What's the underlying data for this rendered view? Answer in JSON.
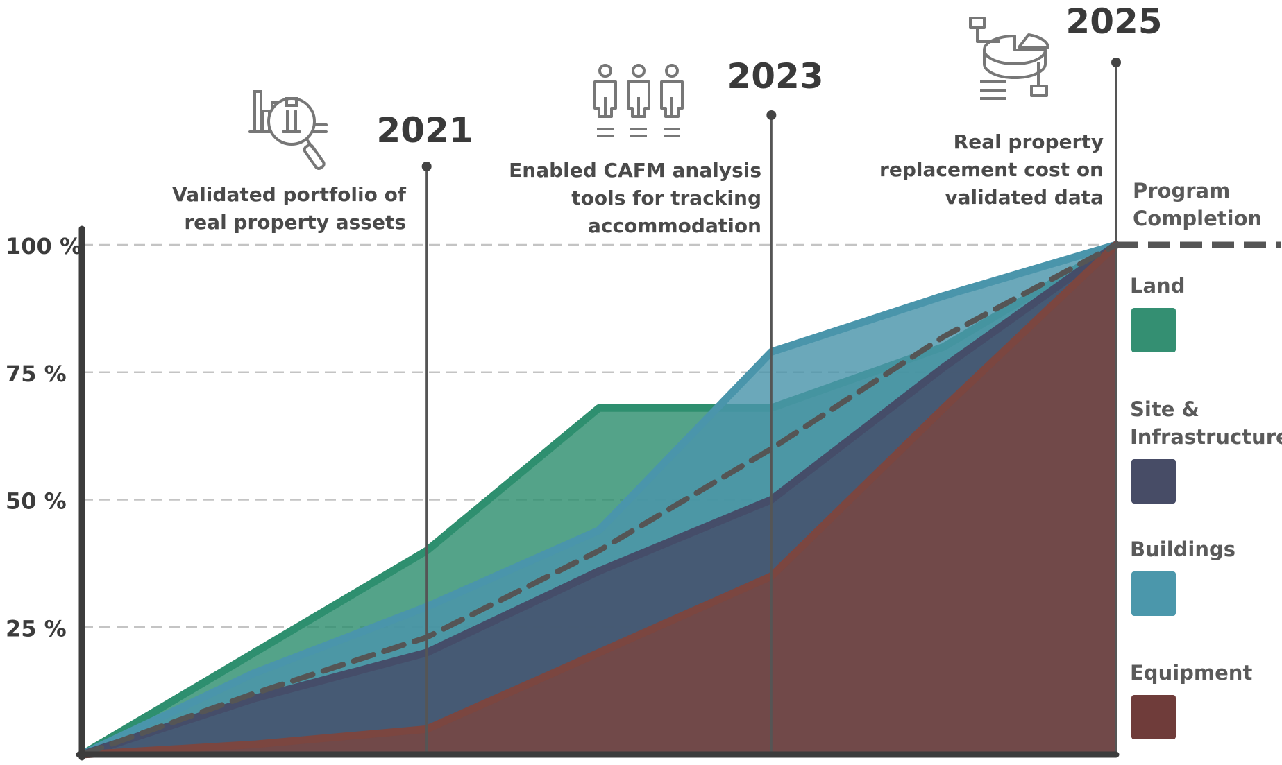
{
  "chart_data": {
    "type": "area",
    "x": [
      2019,
      2020,
      2021,
      2022,
      2023,
      2024,
      2025
    ],
    "ylim": [
      0,
      100
    ],
    "yticks": [
      {
        "value": 25,
        "label": "25 %"
      },
      {
        "value": 50,
        "label": "50 %"
      },
      {
        "value": 75,
        "label": "75 %"
      },
      {
        "value": 100,
        "label": "100 %"
      }
    ],
    "grid": true,
    "series": [
      {
        "name": "Land",
        "key": "land",
        "color": "#2e8f6f",
        "points": [
          [
            2019,
            0
          ],
          [
            2020,
            20
          ],
          [
            2021,
            40
          ],
          [
            2022,
            68
          ],
          [
            2023,
            68
          ],
          [
            2024,
            80
          ],
          [
            2025,
            100
          ]
        ]
      },
      {
        "name": "Buildings",
        "key": "buildings",
        "color": "#4a95ab",
        "points": [
          [
            2019,
            0
          ],
          [
            2020,
            16
          ],
          [
            2021,
            29
          ],
          [
            2022,
            44
          ],
          [
            2023,
            79
          ],
          [
            2024,
            90
          ],
          [
            2025,
            100
          ]
        ]
      },
      {
        "name": "Site & Infrastructure",
        "key": "site",
        "color": "#454d69",
        "points": [
          [
            2019,
            0
          ],
          [
            2020,
            11
          ],
          [
            2021,
            20
          ],
          [
            2022,
            36
          ],
          [
            2023,
            50
          ],
          [
            2024,
            76
          ],
          [
            2025,
            100
          ]
        ]
      },
      {
        "name": "Equipment",
        "key": "equipment",
        "color": "#7b4640",
        "points": [
          [
            2019,
            0
          ],
          [
            2020,
            2
          ],
          [
            2021,
            5
          ],
          [
            2022,
            20
          ],
          [
            2023,
            35
          ],
          [
            2024,
            68
          ],
          [
            2025,
            100
          ]
        ]
      }
    ],
    "program_completion": {
      "label": "Program Completion",
      "label_lines": [
        "Program",
        "Completion"
      ],
      "color": "#555555",
      "points": [
        [
          2019,
          0
        ],
        [
          2020,
          12
        ],
        [
          2021,
          23
        ],
        [
          2022,
          40
        ],
        [
          2023,
          60
        ],
        [
          2024,
          82
        ],
        [
          2025,
          100
        ]
      ]
    },
    "milestones": [
      {
        "year": "2021",
        "x": 2021,
        "icon": "magnifier-chart-icon",
        "lines": [
          "Validated portfolio of",
          "real property assets"
        ]
      },
      {
        "year": "2023",
        "x": 2023,
        "icon": "people-icon",
        "lines": [
          "Enabled CAFM analysis",
          "tools for tracking",
          "accommodation"
        ]
      },
      {
        "year": "2025",
        "x": 2025,
        "icon": "pie-chart-icon",
        "lines": [
          "Real property",
          "replacement cost on",
          "validated data"
        ]
      }
    ],
    "legend": {
      "placement": "right",
      "items": [
        {
          "key": "land",
          "lines": [
            "Land"
          ],
          "color": "#348f72"
        },
        {
          "key": "site",
          "lines": [
            "Site &",
            "Infrastructure"
          ],
          "color": "#474c66"
        },
        {
          "key": "buildings",
          "lines": [
            "Buildings"
          ],
          "color": "#4b97ab"
        },
        {
          "key": "equipment",
          "lines": [
            "Equipment"
          ],
          "color": "#6f3c3a"
        }
      ]
    }
  }
}
